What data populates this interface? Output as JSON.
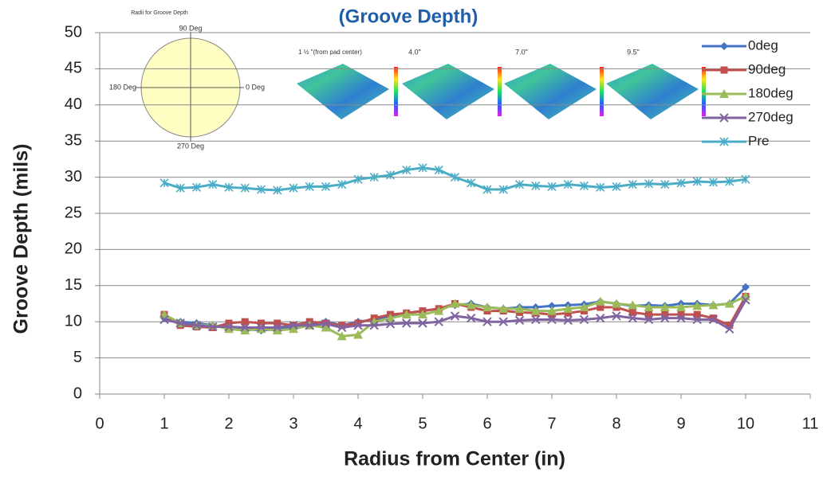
{
  "chart_data": {
    "type": "line",
    "title": "(Groove Depth)",
    "x_label": "Radius from Center (in)",
    "y_label": "Groove Depth (mils)",
    "annotations": [
      "Radii for Groove Depth",
      "90 Deg",
      "180 Deg",
      "0 Deg",
      "270 Deg",
      "1 ½ \"(from pad center)",
      "4.0\"",
      "7.0\"",
      "9.5\""
    ],
    "x": [
      1,
      1.25,
      1.5,
      1.75,
      2,
      2.25,
      2.5,
      2.75,
      3,
      3.25,
      3.5,
      3.75,
      4,
      4.25,
      4.5,
      4.75,
      5,
      5.25,
      5.5,
      5.75,
      6,
      6.25,
      6.5,
      6.75,
      7,
      7.25,
      7.5,
      7.75,
      8,
      8.25,
      8.5,
      8.75,
      9,
      9.25,
      9.5,
      9.75,
      10
    ],
    "series": [
      {
        "name": "0deg",
        "color": "#4472c4",
        "marker": "diamond",
        "values": [
          10.5,
          10,
          9.8,
          9.5,
          9.2,
          9,
          8.8,
          9,
          9.2,
          9.8,
          10,
          9.5,
          10,
          10.3,
          10.8,
          11.2,
          11.5,
          11.8,
          12.3,
          12.5,
          12,
          11.8,
          12,
          12,
          12.2,
          12.3,
          12.4,
          12.8,
          12.5,
          12.2,
          12.3,
          12.2,
          12.5,
          12.5,
          12.3,
          12.5,
          14.8
        ]
      },
      {
        "name": "90deg",
        "color": "#c0504d",
        "marker": "square",
        "values": [
          11,
          9.5,
          9.3,
          9.2,
          9.8,
          10,
          9.8,
          9.8,
          9.5,
          10,
          9.8,
          9.5,
          9.8,
          10.5,
          11,
          11.2,
          11.5,
          11.8,
          12.5,
          12,
          11.5,
          11.5,
          11.3,
          11.2,
          11,
          11.2,
          11.5,
          12,
          12,
          11.3,
          11,
          11,
          11,
          11,
          10.5,
          9.5,
          13.5
        ]
      },
      {
        "name": "180deg",
        "color": "#9bbb59",
        "marker": "triangle",
        "values": [
          11,
          9.8,
          9.5,
          9.5,
          9,
          8.8,
          9,
          8.8,
          9,
          9.5,
          9.2,
          8,
          8.2,
          10,
          10.5,
          11,
          11,
          11.5,
          12.5,
          12.3,
          12,
          11.8,
          11.8,
          11.5,
          11.5,
          11.8,
          12,
          12.8,
          12.5,
          12.3,
          12,
          12,
          12,
          12.2,
          12.3,
          12.5,
          13.5
        ]
      },
      {
        "name": "270deg",
        "color": "#8064a2",
        "marker": "x",
        "values": [
          10.3,
          9.8,
          9.5,
          9.3,
          9.3,
          9.2,
          9.2,
          9.2,
          9.5,
          9.5,
          9.7,
          9.2,
          9.5,
          9.5,
          9.7,
          9.8,
          9.8,
          10,
          10.8,
          10.5,
          10,
          10,
          10.2,
          10.3,
          10.3,
          10.2,
          10.3,
          10.5,
          10.8,
          10.5,
          10.3,
          10.5,
          10.5,
          10.3,
          10.3,
          9,
          13
        ]
      },
      {
        "name": "Pre",
        "color": "#4bacc6",
        "marker": "star",
        "values": [
          29.2,
          28.5,
          28.6,
          29,
          28.6,
          28.5,
          28.3,
          28.2,
          28.5,
          28.7,
          28.7,
          29,
          29.7,
          30,
          30.3,
          31,
          31.3,
          31,
          30,
          29.2,
          28.3,
          28.3,
          29,
          28.8,
          28.7,
          29,
          28.8,
          28.6,
          28.7,
          29,
          29.1,
          29,
          29.2,
          29.4,
          29.3,
          29.4,
          29.7
        ]
      }
    ],
    "xlim": [
      0,
      11
    ],
    "xticks": [
      0,
      1,
      2,
      3,
      4,
      5,
      6,
      7,
      8,
      9,
      10,
      11
    ],
    "ylim": [
      0,
      50
    ],
    "yticks": [
      0,
      5,
      10,
      15,
      20,
      25,
      30,
      35,
      40,
      45,
      50
    ],
    "grid": true,
    "legend": "upper right"
  }
}
